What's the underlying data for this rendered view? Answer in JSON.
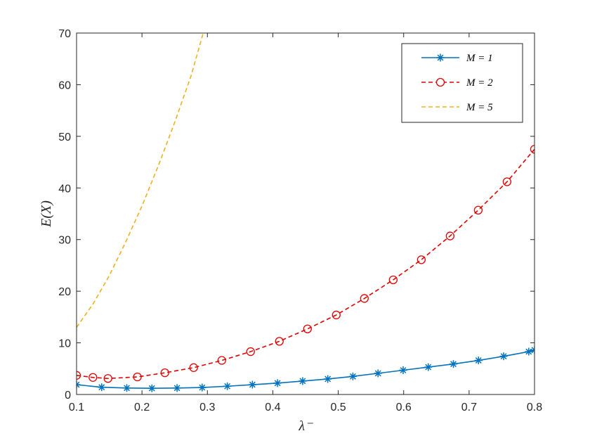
{
  "chart_data": {
    "type": "line",
    "xlabel": "λ⁻",
    "ylabel": "E(X)",
    "xlim": [
      0.1,
      0.8
    ],
    "ylim": [
      0,
      70
    ],
    "xticks": [
      "0.1",
      "0.2",
      "0.3",
      "0.4",
      "0.5",
      "0.6",
      "0.7",
      "0.8"
    ],
    "yticks": [
      "0",
      "10",
      "20",
      "30",
      "40",
      "50",
      "60",
      "70"
    ],
    "grid": false,
    "legend_position": "top-right",
    "series": [
      {
        "name": "M = 1",
        "color": "#0072BD",
        "line_style": "solid",
        "marker": "asterisk",
        "x": [
          0.1,
          0.1384,
          0.1768,
          0.2152,
          0.2536,
          0.292,
          0.3304,
          0.3688,
          0.4072,
          0.4456,
          0.484,
          0.5224,
          0.5608,
          0.5992,
          0.6376,
          0.676,
          0.7144,
          0.7528,
          0.7912,
          0.8
        ],
        "y": [
          1.9,
          1.4,
          1.25,
          1.2,
          1.25,
          1.35,
          1.6,
          1.9,
          2.2,
          2.6,
          3.0,
          3.5,
          4.1,
          4.7,
          5.3,
          5.9,
          6.6,
          7.4,
          8.3,
          8.6
        ]
      },
      {
        "name": "M = 2",
        "color": "#E00000",
        "line_style": "dashed",
        "marker": "circle",
        "x": [
          0.1,
          0.125,
          0.148,
          0.193,
          0.235,
          0.279,
          0.322,
          0.366,
          0.41,
          0.453,
          0.497,
          0.54,
          0.584,
          0.627,
          0.671,
          0.714,
          0.758,
          0.8
        ],
        "y": [
          3.7,
          3.3,
          3.1,
          3.4,
          4.2,
          5.2,
          6.6,
          8.3,
          10.3,
          12.7,
          15.4,
          18.6,
          22.2,
          26.1,
          30.7,
          35.7,
          41.2,
          47.5
        ]
      },
      {
        "name": "M = 5",
        "color": "#EDB120",
        "line_style": "dashed",
        "marker": "none",
        "x": [
          0.1,
          0.125,
          0.15,
          0.175,
          0.2,
          0.225,
          0.25,
          0.275,
          0.2936
        ],
        "y": [
          13.0,
          17.5,
          23.0,
          29.5,
          36.5,
          44.3,
          52.7,
          61.7,
          70.0
        ]
      }
    ]
  }
}
